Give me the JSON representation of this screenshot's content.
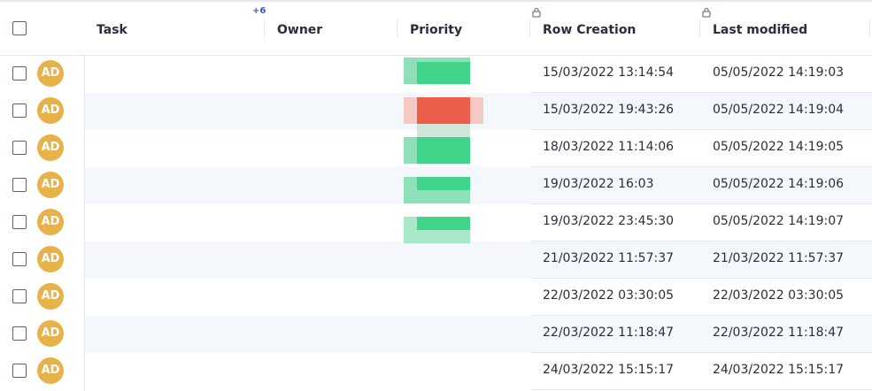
{
  "header": {
    "columns": [
      "Task",
      "Owner",
      "Priority",
      "Row Creation",
      "Last modified"
    ],
    "hidden_count": "+6"
  },
  "rows": [
    {
      "avatar": "AD",
      "row_creation": "15/03/2022 13:14:54",
      "last_modified": "05/05/2022 14:19:03"
    },
    {
      "avatar": "AD",
      "row_creation": "15/03/2022 19:43:26",
      "last_modified": "05/05/2022 14:19:04"
    },
    {
      "avatar": "AD",
      "row_creation": "18/03/2022 11:14:06",
      "last_modified": "05/05/2022 14:19:05"
    },
    {
      "avatar": "AD",
      "row_creation": "19/03/2022 16:03",
      "last_modified": "05/05/2022 14:19:06"
    },
    {
      "avatar": "AD",
      "row_creation": "19/03/2022 23:45:30",
      "last_modified": "05/05/2022 14:19:07"
    },
    {
      "avatar": "AD",
      "row_creation": "21/03/2022 11:57:37",
      "last_modified": "21/03/2022 11:57:37"
    },
    {
      "avatar": "AD",
      "row_creation": "22/03/2022 03:30:05",
      "last_modified": "22/03/2022 03:30:05"
    },
    {
      "avatar": "AD",
      "row_creation": "22/03/2022 11:18:47",
      "last_modified": "22/03/2022 11:18:47"
    },
    {
      "avatar": "AD",
      "row_creation": "24/03/2022 15:15:17",
      "last_modified": "24/03/2022 15:15:17"
    }
  ]
}
